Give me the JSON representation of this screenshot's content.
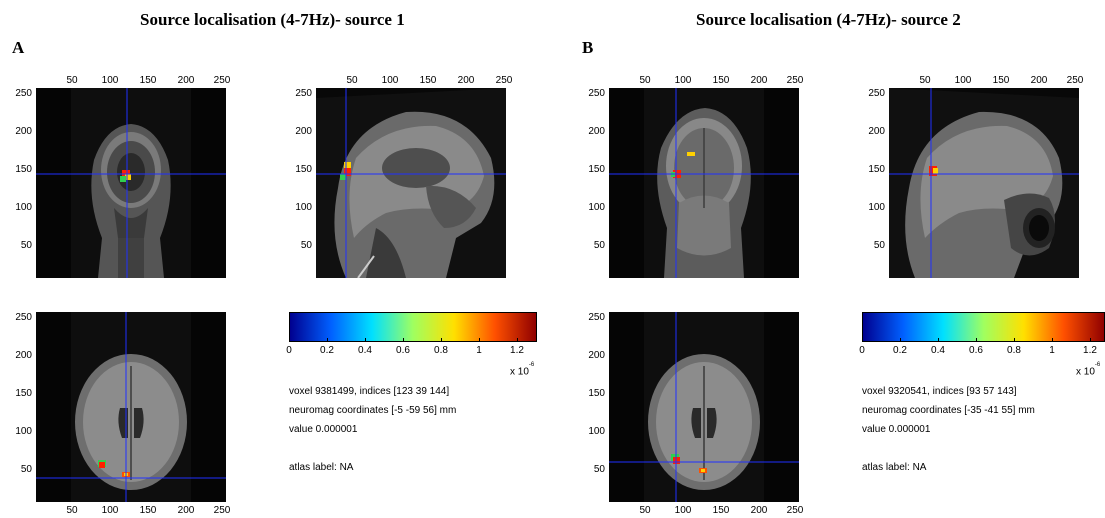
{
  "panels": [
    {
      "letter": "A",
      "title": "Source localisation (4-7Hz)- source 1",
      "x_ticks": [
        "50",
        "100",
        "150",
        "200",
        "250"
      ],
      "y_ticks": [
        "250",
        "200",
        "150",
        "100",
        "50"
      ],
      "colorbar": {
        "ticks": [
          "0",
          "0.2",
          "0.4",
          "0.6",
          "0.8",
          "1",
          "1.2"
        ],
        "scale_base": "x 10",
        "scale_exp": "-6",
        "colors": [
          "#00008f",
          "#0060ff",
          "#00e0ff",
          "#9fff60",
          "#ffe000",
          "#ff5000",
          "#8f0000"
        ]
      },
      "info": {
        "voxel": "voxel 9381499, indices [123 39 144]",
        "coords": "neuromag coordinates [-5 -59 56] mm",
        "value": "value 0.000001",
        "atlas": "atlas label: NA"
      }
    },
    {
      "letter": "B",
      "title": "Source localisation (4-7Hz)- source 2",
      "x_ticks": [
        "50",
        "100",
        "150",
        "200",
        "250"
      ],
      "y_ticks": [
        "250",
        "200",
        "150",
        "100",
        "50"
      ],
      "colorbar": {
        "ticks": [
          "0",
          "0.2",
          "0.4",
          "0.6",
          "0.8",
          "1",
          "1.2"
        ],
        "scale_base": "x 10",
        "scale_exp": "-6",
        "colors": [
          "#00008f",
          "#0060ff",
          "#00e0ff",
          "#9fff60",
          "#ffe000",
          "#ff5000",
          "#8f0000"
        ]
      },
      "info": {
        "voxel": "voxel 9320541, indices [93 57 143]",
        "coords": "neuromag coordinates [-35 -41 55] mm",
        "value": "value 0.000001",
        "atlas": "atlas label: NA"
      }
    }
  ]
}
